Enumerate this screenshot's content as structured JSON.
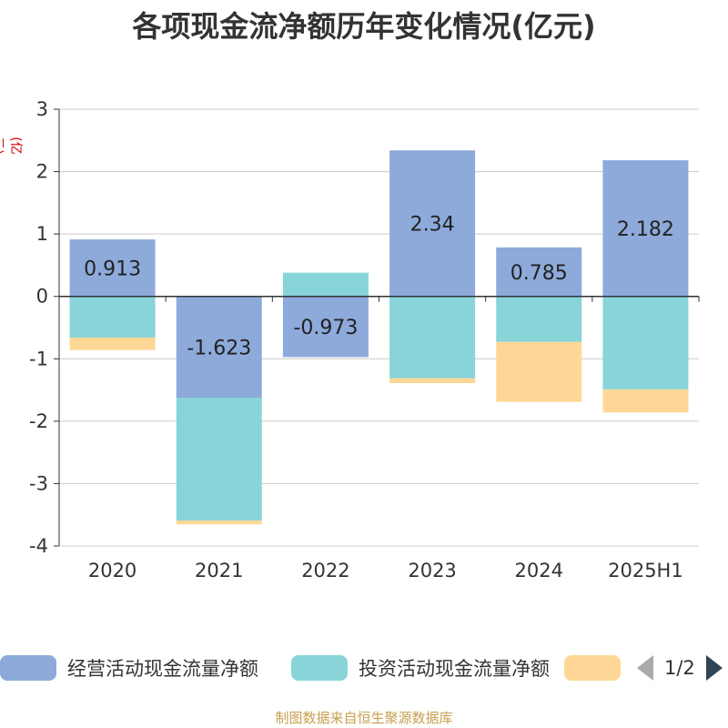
{
  "title": "各项现金流净额历年变化情况(亿元)",
  "unit_label": "(亿元)",
  "source": "制图数据来自恒生聚源数据库",
  "legend": {
    "items": [
      {
        "label": "经营活动现金流量净额",
        "color": "#8eaadb"
      },
      {
        "label": "投资活动现金流量净额",
        "color": "#88d4d8"
      },
      {
        "label": "",
        "color": "#fed797"
      }
    ],
    "page": "1/2"
  },
  "chart_data": {
    "type": "bar",
    "stacked": true,
    "categories": [
      "2020",
      "2021",
      "2022",
      "2023",
      "2024",
      "2025H1"
    ],
    "series": [
      {
        "name": "经营活动现金流量净额",
        "color": "#8eaadb",
        "values": [
          0.913,
          -1.623,
          -0.973,
          2.34,
          0.785,
          2.182
        ],
        "labels": [
          "0.913",
          "-1.623",
          "-0.973",
          "2.34",
          "0.785",
          "2.182"
        ]
      },
      {
        "name": "投资活动现金流量净额",
        "color": "#88d4d8",
        "values": [
          -0.66,
          -1.97,
          0.38,
          -1.31,
          -0.73,
          -1.49
        ]
      },
      {
        "name": "",
        "color": "#fed797",
        "values": [
          -0.2,
          -0.06,
          0,
          -0.08,
          -0.96,
          -0.37
        ]
      }
    ],
    "yticks": [
      "3",
      "2",
      "1",
      "0",
      "-1",
      "-2",
      "-3",
      "-4"
    ],
    "ylim": [
      -4,
      3
    ],
    "grid": true
  }
}
